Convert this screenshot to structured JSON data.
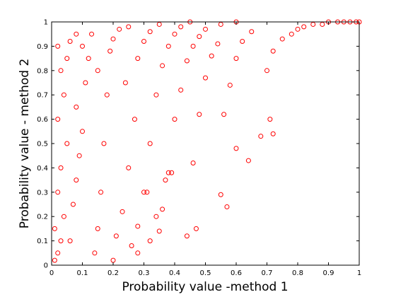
{
  "chart_data": {
    "type": "scatter",
    "title": "",
    "xlabel": "Probability value -method 1",
    "ylabel": "Probability value - method 2",
    "xlim": [
      0,
      1
    ],
    "ylim": [
      0,
      1
    ],
    "grid": false,
    "x_ticks": [
      0,
      0.1,
      0.2,
      0.3,
      0.4,
      0.5,
      0.6,
      0.7,
      0.8,
      0.9,
      1
    ],
    "x_tick_labels": [
      "0",
      "0.1",
      "0.2",
      "0.3",
      "0.4",
      "0.5",
      "0.6",
      "0.7",
      "0.8",
      "0.9",
      "1"
    ],
    "y_ticks": [
      0,
      0.1,
      0.2,
      0.3,
      0.4,
      0.5,
      0.6,
      0.7,
      0.8,
      0.9,
      1
    ],
    "y_tick_labels": [
      "0",
      "0.1",
      "0.2",
      "0.3",
      "0.4",
      "0.5",
      "0.6",
      "0.7",
      "0.8",
      "0.9",
      "1"
    ],
    "marker": "open-circle",
    "marker_color": "#ff0000",
    "series": [
      {
        "values": [
          [
            0.01,
            0.02
          ],
          [
            0.02,
            0.05
          ],
          [
            0.03,
            0.1
          ],
          [
            0.01,
            0.15
          ],
          [
            0.04,
            0.2
          ],
          [
            0.02,
            0.3
          ],
          [
            0.03,
            0.4
          ],
          [
            0.05,
            0.5
          ],
          [
            0.02,
            0.6
          ],
          [
            0.04,
            0.7
          ],
          [
            0.03,
            0.8
          ],
          [
            0.05,
            0.85
          ],
          [
            0.02,
            0.9
          ],
          [
            0.06,
            0.92
          ],
          [
            0.08,
            0.95
          ],
          [
            0.06,
            0.1
          ],
          [
            0.07,
            0.25
          ],
          [
            0.08,
            0.35
          ],
          [
            0.09,
            0.45
          ],
          [
            0.1,
            0.55
          ],
          [
            0.08,
            0.65
          ],
          [
            0.11,
            0.75
          ],
          [
            0.12,
            0.85
          ],
          [
            0.1,
            0.9
          ],
          [
            0.13,
            0.95
          ],
          [
            0.14,
            0.05
          ],
          [
            0.15,
            0.15
          ],
          [
            0.16,
            0.3
          ],
          [
            0.17,
            0.5
          ],
          [
            0.18,
            0.7
          ],
          [
            0.15,
            0.8
          ],
          [
            0.19,
            0.88
          ],
          [
            0.2,
            0.93
          ],
          [
            0.22,
            0.97
          ],
          [
            0.25,
            0.98
          ],
          [
            0.2,
            0.02
          ],
          [
            0.21,
            0.12
          ],
          [
            0.23,
            0.22
          ],
          [
            0.25,
            0.4
          ],
          [
            0.27,
            0.6
          ],
          [
            0.24,
            0.75
          ],
          [
            0.28,
            0.85
          ],
          [
            0.3,
            0.92
          ],
          [
            0.32,
            0.96
          ],
          [
            0.35,
            0.99
          ],
          [
            0.26,
            0.08
          ],
          [
            0.28,
            0.16
          ],
          [
            0.3,
            0.3
          ],
          [
            0.32,
            0.5
          ],
          [
            0.34,
            0.7
          ],
          [
            0.36,
            0.82
          ],
          [
            0.38,
            0.9
          ],
          [
            0.4,
            0.95
          ],
          [
            0.42,
            0.98
          ],
          [
            0.45,
            1.0
          ],
          [
            0.36,
            0.23
          ],
          [
            0.38,
            0.38
          ],
          [
            0.4,
            0.6
          ],
          [
            0.42,
            0.72
          ],
          [
            0.44,
            0.84
          ],
          [
            0.46,
            0.9
          ],
          [
            0.48,
            0.94
          ],
          [
            0.5,
            0.97
          ],
          [
            0.55,
            0.99
          ],
          [
            0.6,
            1.0
          ],
          [
            0.46,
            0.42
          ],
          [
            0.48,
            0.62
          ],
          [
            0.5,
            0.77
          ],
          [
            0.52,
            0.86
          ],
          [
            0.54,
            0.91
          ],
          [
            0.56,
            0.62
          ],
          [
            0.58,
            0.74
          ],
          [
            0.6,
            0.85
          ],
          [
            0.62,
            0.92
          ],
          [
            0.65,
            0.96
          ],
          [
            0.39,
            0.38
          ],
          [
            0.44,
            0.12
          ],
          [
            0.47,
            0.15
          ],
          [
            0.55,
            0.29
          ],
          [
            0.57,
            0.24
          ],
          [
            0.6,
            0.48
          ],
          [
            0.64,
            0.43
          ],
          [
            0.68,
            0.53
          ],
          [
            0.72,
            0.54
          ],
          [
            0.71,
            0.6
          ],
          [
            0.7,
            0.8
          ],
          [
            0.72,
            0.88
          ],
          [
            0.75,
            0.93
          ],
          [
            0.78,
            0.95
          ],
          [
            0.8,
            0.97
          ],
          [
            0.82,
            0.98
          ],
          [
            0.85,
            0.99
          ],
          [
            0.88,
            0.99
          ],
          [
            0.9,
            1.0
          ],
          [
            0.93,
            1.0
          ],
          [
            0.95,
            1.0
          ],
          [
            0.97,
            1.0
          ],
          [
            0.99,
            1.0
          ],
          [
            1.0,
            1.0
          ],
          [
            0.34,
            0.2
          ],
          [
            0.32,
            0.1
          ],
          [
            0.28,
            0.05
          ],
          [
            0.35,
            0.14
          ],
          [
            0.31,
            0.3
          ],
          [
            0.37,
            0.35
          ]
        ]
      }
    ]
  }
}
